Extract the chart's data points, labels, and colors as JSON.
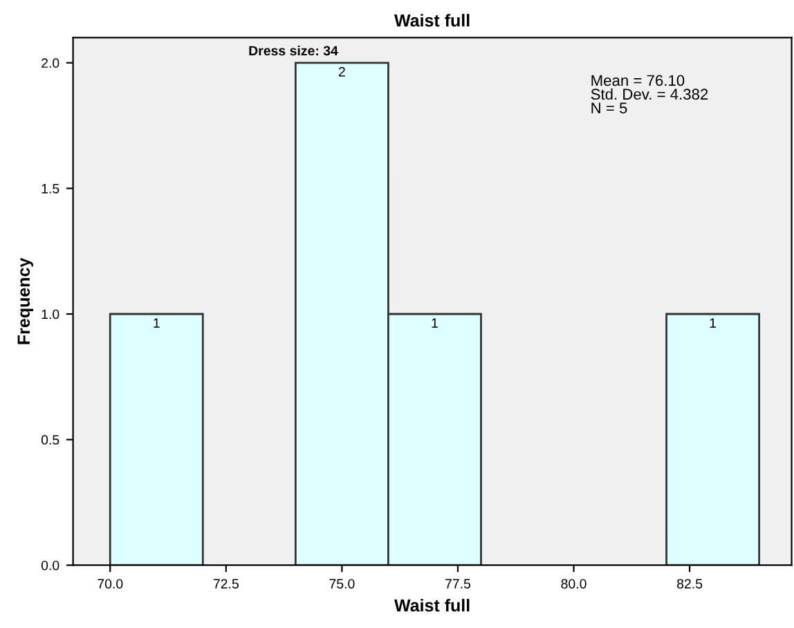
{
  "chart_data": {
    "type": "histogram",
    "title": "Waist full",
    "subtitle": "Dress size: 34",
    "xlabel": "Waist full",
    "ylabel": "Frequency",
    "bins": [
      70,
      72,
      74,
      76,
      78,
      80,
      82,
      84
    ],
    "values": [
      1,
      0,
      2,
      1,
      0,
      0,
      1
    ],
    "value_labels": [
      "1",
      null,
      "2",
      "1",
      null,
      null,
      "1"
    ],
    "color": "#ddffff",
    "xlim": [
      69.2,
      84.7
    ],
    "xticks": [
      {
        "value": 70,
        "label": "70.0"
      },
      72.5,
      {
        "value": 75,
        "label": "75.0"
      },
      77.5,
      {
        "value": 80,
        "label": "80.0"
      },
      82.5
    ],
    "ylim": [
      0,
      2.1
    ],
    "yticks": [
      {
        "value": 0,
        "label": "0.0"
      },
      0.5,
      {
        "value": 1,
        "label": "1.0"
      },
      1.5,
      {
        "value": 2,
        "label": "2.0"
      }
    ],
    "grid": false,
    "legend": false,
    "annotations": [
      "Mean = 76.10\nStd. Dev. = 4.382\nN = 5"
    ]
  }
}
